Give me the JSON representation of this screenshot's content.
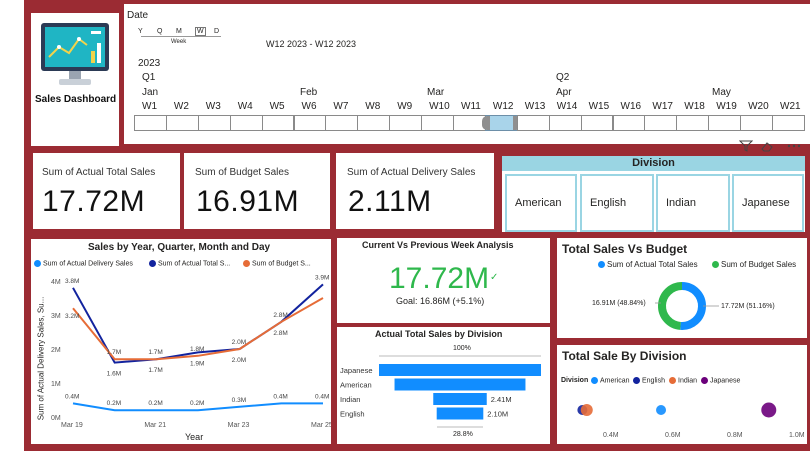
{
  "sidebar": {
    "logo_label": "Sales Dashboard"
  },
  "timeline": {
    "title": "Date",
    "granularity": [
      "Y",
      "Q",
      "M",
      "W",
      "D"
    ],
    "granularity_selected": "Week",
    "range_text": "W12 2023 - W12 2023",
    "year": "2023",
    "quarters": [
      "Q1",
      "Q2"
    ],
    "months": [
      "Jan",
      "Feb",
      "Mar",
      "Apr",
      "May"
    ],
    "weeks": [
      "W1",
      "W2",
      "W3",
      "W4",
      "W5",
      "W6",
      "W7",
      "W8",
      "W9",
      "W10",
      "W11",
      "W12",
      "W13",
      "W14",
      "W15",
      "W16",
      "W17",
      "W18",
      "W19",
      "W20",
      "W21"
    ],
    "selected_week": "W12"
  },
  "kpis": [
    {
      "label": "Sum of Actual Total Sales",
      "value": "17.72M"
    },
    {
      "label": "Sum of Budget Sales",
      "value": "16.91M"
    },
    {
      "label": "Sum of Actual Delivery Sales",
      "value": "2.11M"
    }
  ],
  "division_slicer": {
    "title": "Division",
    "options": [
      "American",
      "English",
      "Indian",
      "Japanese"
    ]
  },
  "line_chart": {
    "title": "Sales by Year, Quarter, Month and Day",
    "legend": [
      "Sum of Actual Delivery Sales",
      "Sum of Actual Total S...",
      "Sum of Budget S..."
    ],
    "ylabel": "Sum of Actual Delivery Sales, Su...",
    "xlabel": "Year",
    "yticks": [
      "4M",
      "3M",
      "2M",
      "1M",
      "0M"
    ],
    "xticks": [
      "Mar 19",
      "Mar 21",
      "Mar 23",
      "Mar 25"
    ],
    "point_labels_total": [
      "3.8M",
      "1.6M",
      "1.7M",
      "1.9M",
      "2.0M",
      "2.8M",
      "3.9M"
    ],
    "point_labels_budget": [
      "3.2M",
      "1.7M",
      "1.7M",
      "1.8M",
      "2.0M",
      "2.8M"
    ],
    "point_labels_delivery": [
      "0.4M",
      "0.2M",
      "0.2M",
      "0.2M",
      "0.3M",
      "0.4M",
      "0.4M"
    ]
  },
  "gauge_card": {
    "title": "Current Vs Previous Week Analysis",
    "value": "17.72M",
    "check": "✓",
    "goal": "Goal: 16.86M (+5.1%)"
  },
  "funnel": {
    "title": "Actual Total Sales by Division",
    "top_pct": "100%",
    "bottom_pct": "28.8%",
    "categories": [
      "Japanese",
      "American",
      "Indian",
      "English"
    ],
    "value_labels": [
      "",
      "",
      "2.41M",
      "2.10M"
    ]
  },
  "donut": {
    "title": "Total Sales Vs Budget",
    "legend": [
      "Sum of Actual Total Sales",
      "Sum of Budget Sales"
    ],
    "left_label": "16.91M (48.84%)",
    "right_label": "17.72M (51.16%)"
  },
  "scatter": {
    "title": "Total Sale By Division",
    "legend_title": "Division",
    "legend": [
      "American",
      "English",
      "Indian",
      "Japanese"
    ],
    "xticks": [
      "0.4M",
      "0.6M",
      "0.8M",
      "1.0M"
    ]
  },
  "visual_header_icons": [
    "filter-icon",
    "eraser-icon",
    "more-options-icon"
  ],
  "colors": {
    "frame": "#9b2b33",
    "delivery": "#118dff",
    "total": "#12239e",
    "budget": "#e66c37",
    "japanese": "#6b007b",
    "green": "#2fb84c",
    "slicer_header": "#9ad5e3",
    "funnel": "#118dff"
  },
  "chart_data": [
    {
      "type": "line",
      "title": "Sales by Year, Quarter, Month and Day",
      "x": [
        "Mar 19",
        "Mar 20",
        "Mar 21",
        "Mar 22",
        "Mar 23",
        "Mar 24",
        "Mar 25"
      ],
      "series": [
        {
          "name": "Sum of Actual Delivery Sales",
          "values": [
            0.4,
            0.2,
            0.2,
            0.2,
            0.3,
            0.4,
            0.4
          ]
        },
        {
          "name": "Sum of Actual Total Sales",
          "values": [
            3.8,
            1.6,
            1.7,
            1.9,
            2.0,
            2.8,
            3.9
          ]
        },
        {
          "name": "Sum of Budget Sales",
          "values": [
            3.2,
            1.7,
            1.7,
            1.8,
            2.0,
            2.8,
            3.5
          ]
        }
      ],
      "ylim": [
        0,
        4
      ]
    },
    {
      "type": "bar",
      "title": "Actual Total Sales by Division",
      "categories": [
        "Japanese",
        "American",
        "Indian",
        "English"
      ],
      "values": [
        7.3,
        5.9,
        2.41,
        2.1
      ]
    },
    {
      "type": "pie",
      "title": "Total Sales Vs Budget",
      "categories": [
        "Sum of Actual Total Sales",
        "Sum of Budget Sales"
      ],
      "values": [
        17.72,
        16.91
      ]
    },
    {
      "type": "scatter",
      "title": "Total Sale By Division",
      "categories": [
        "American",
        "English",
        "Indian",
        "Japanese"
      ],
      "x": [
        0.28,
        0.27,
        0.54,
        0.91
      ],
      "sizes": [
        1,
        1,
        1.2,
        1.5
      ],
      "xlim": [
        0.2,
        1.0
      ]
    }
  ]
}
